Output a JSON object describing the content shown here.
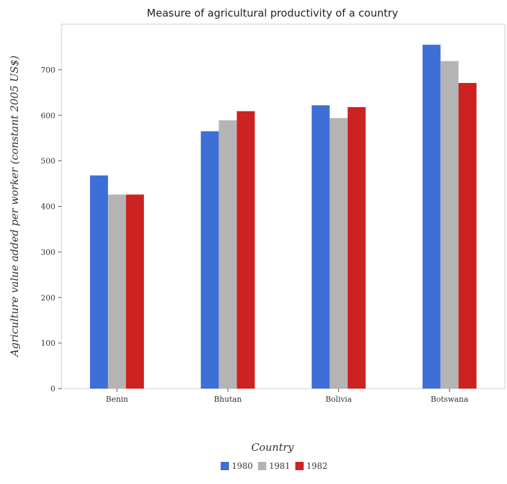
{
  "chart_data": {
    "type": "bar",
    "title": "Measure of agricultural productivity of a country",
    "xlabel": "Country",
    "ylabel": "Agriculture value added per worker (constant 2005 US$)",
    "categories": [
      "Benin",
      "Bhutan",
      "Bolivia",
      "Botswana"
    ],
    "series": [
      {
        "name": "1980",
        "color": "#3d6fd6",
        "values": [
          468,
          565,
          622,
          755
        ]
      },
      {
        "name": "1981",
        "color": "#b4b4b4",
        "values": [
          426,
          589,
          594,
          719
        ]
      },
      {
        "name": "1982",
        "color": "#cc2222",
        "values": [
          426,
          609,
          618,
          671
        ]
      }
    ],
    "ylim": [
      0,
      800
    ],
    "yticks": [
      0,
      100,
      200,
      300,
      400,
      500,
      600,
      700
    ],
    "grid": false,
    "legend_position": "bottom-center"
  }
}
